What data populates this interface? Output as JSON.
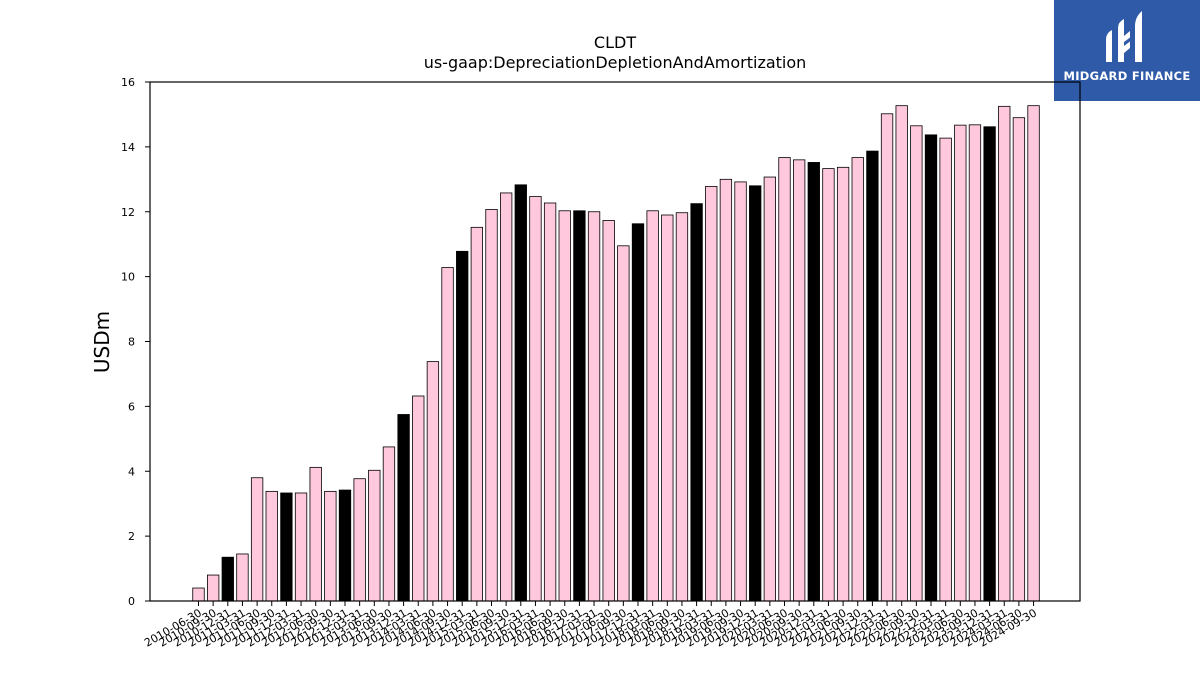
{
  "brand": {
    "name": "MIDGARD FINANCE",
    "bg_color": "#2f5aa8"
  },
  "chart_data": {
    "type": "bar",
    "title": "CLDT",
    "subtitle": "us-gaap:DepreciationDepletionAndAmortization",
    "xlabel": "",
    "ylabel": "USDm",
    "ylim": [
      0,
      16
    ],
    "yticks": [
      0,
      2,
      4,
      6,
      8,
      10,
      12,
      14,
      16
    ],
    "grid": false,
    "legend": "none",
    "colors": {
      "q4_bar": "#000000",
      "other_bar": "#ffc8dd",
      "edge": "#000000"
    },
    "categories": [
      "2010-06-30",
      "2010-09-30",
      "2010-12-31",
      "2011-03-31",
      "2011-06-30",
      "2011-09-30",
      "2011-12-31",
      "2012-03-31",
      "2012-06-30",
      "2012-09-30",
      "2012-12-31",
      "2013-03-31",
      "2013-06-30",
      "2013-09-30",
      "2013-12-31",
      "2014-03-31",
      "2014-06-30",
      "2014-09-30",
      "2014-12-31",
      "2015-03-31",
      "2015-06-30",
      "2015-09-30",
      "2015-12-31",
      "2016-03-31",
      "2016-06-30",
      "2016-09-30",
      "2016-12-31",
      "2017-03-31",
      "2017-06-30",
      "2017-09-30",
      "2017-12-31",
      "2018-03-31",
      "2018-06-30",
      "2018-09-30",
      "2018-12-31",
      "2019-03-31",
      "2019-06-30",
      "2019-09-30",
      "2019-12-31",
      "2020-03-31",
      "2020-06-30",
      "2020-09-30",
      "2020-12-31",
      "2021-03-31",
      "2021-06-30",
      "2021-09-30",
      "2021-12-31",
      "2022-03-31",
      "2022-06-30",
      "2022-09-30",
      "2022-12-31",
      "2023-03-31",
      "2023-06-30",
      "2023-09-30",
      "2023-12-31",
      "2024-03-31",
      "2024-06-30",
      "2024-09-30"
    ],
    "values": [
      0.4,
      0.8,
      1.35,
      1.45,
      3.8,
      3.38,
      3.33,
      3.33,
      4.12,
      3.38,
      3.42,
      3.77,
      4.03,
      4.75,
      5.75,
      6.32,
      7.38,
      10.28,
      10.78,
      11.52,
      12.07,
      12.58,
      12.83,
      12.47,
      12.27,
      12.03,
      12.03,
      12.0,
      11.73,
      10.95,
      11.63,
      12.03,
      11.9,
      11.97,
      12.25,
      12.78,
      13.0,
      12.92,
      12.8,
      13.07,
      13.67,
      13.6,
      13.52,
      13.33,
      13.37,
      13.67,
      13.87,
      15.02,
      15.27,
      14.65,
      14.37,
      14.27,
      14.67,
      14.68,
      14.62,
      15.25,
      14.9,
      15.27
    ]
  }
}
